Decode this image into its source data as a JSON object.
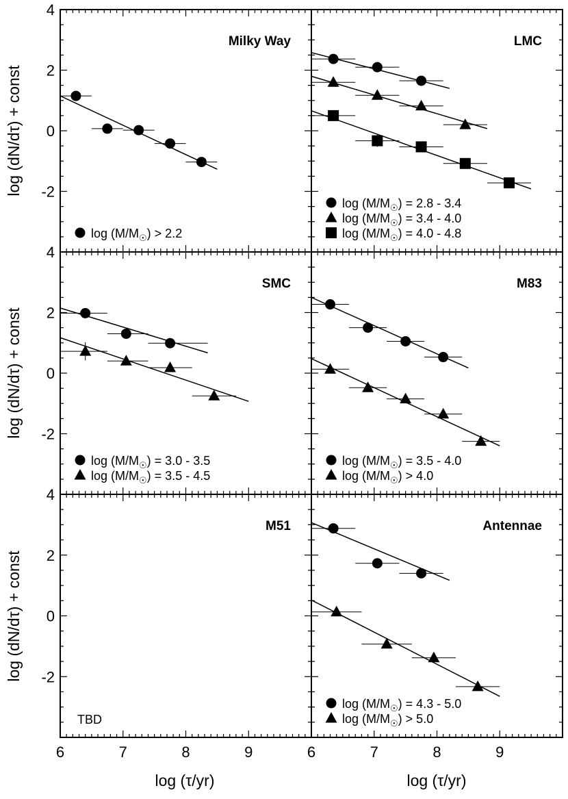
{
  "figure": {
    "xlabel": "log (τ/yr)",
    "ylabel": "log (dN/dτ) + const",
    "xlim": [
      6,
      10
    ],
    "ylim": [
      -4,
      4
    ],
    "x_ticks": [
      "6",
      "7",
      "8",
      "9"
    ],
    "y_ticks": [
      "4",
      "2",
      "0",
      "-2"
    ]
  },
  "chart_data": [
    {
      "type": "scatter",
      "title": "Milky Way",
      "xlabel": "log (τ/yr)",
      "ylabel": "log (dN/dτ) + const",
      "xlim": [
        6,
        10
      ],
      "ylim": [
        -4,
        4
      ],
      "series": [
        {
          "name": "log (M/M☉) > 2.2",
          "marker": "circle",
          "points": [
            {
              "x": 6.25,
              "y": 1.15,
              "xerr": [
                6.0,
                6.5
              ],
              "yerr": 0
            },
            {
              "x": 6.75,
              "y": 0.07,
              "xerr": [
                6.5,
                7.0
              ],
              "yerr": 0
            },
            {
              "x": 7.25,
              "y": 0.02,
              "xerr": [
                7.0,
                7.5
              ],
              "yerr": 0
            },
            {
              "x": 7.75,
              "y": -0.42,
              "xerr": [
                7.5,
                8.0
              ],
              "yerr": 0
            },
            {
              "x": 8.25,
              "y": -1.03,
              "xerr": [
                8.0,
                8.5
              ],
              "yerr": 0
            }
          ],
          "fit": {
            "x": [
              6.0,
              8.5
            ],
            "y": [
              1.15,
              -1.27
            ]
          }
        }
      ]
    },
    {
      "type": "scatter",
      "title": "LMC",
      "xlabel": "log (τ/yr)",
      "ylabel": "log (dN/dτ) + const",
      "xlim": [
        6,
        10
      ],
      "ylim": [
        -4,
        4
      ],
      "series": [
        {
          "name": "log (M/M☉) = 2.8 - 3.4",
          "marker": "circle",
          "points": [
            {
              "x": 6.35,
              "y": 2.37,
              "xerr": [
                6.0,
                6.7
              ],
              "yerr": 0
            },
            {
              "x": 7.05,
              "y": 2.1,
              "xerr": [
                6.7,
                7.4
              ],
              "yerr": 0
            },
            {
              "x": 7.75,
              "y": 1.65,
              "xerr": [
                7.4,
                8.1
              ],
              "yerr": 0
            }
          ],
          "fit": {
            "x": [
              6.0,
              8.2
            ],
            "y": [
              2.58,
              1.4
            ]
          }
        },
        {
          "name": "log (M/M☉) = 3.4 - 4.0",
          "marker": "triangle",
          "points": [
            {
              "x": 6.35,
              "y": 1.6,
              "xerr": [
                6.0,
                6.7
              ],
              "yerr": 0
            },
            {
              "x": 7.05,
              "y": 1.17,
              "xerr": [
                6.7,
                7.4
              ],
              "yerr": 0
            },
            {
              "x": 7.75,
              "y": 0.82,
              "xerr": [
                7.4,
                8.1
              ],
              "yerr": 0
            },
            {
              "x": 8.45,
              "y": 0.2,
              "xerr": [
                8.1,
                8.8
              ],
              "yerr": 0
            }
          ],
          "fit": {
            "x": [
              6.0,
              8.8
            ],
            "y": [
              1.8,
              0.07
            ]
          }
        },
        {
          "name": "log (M/M☉) = 4.0 - 4.8",
          "marker": "square",
          "points": [
            {
              "x": 6.35,
              "y": 0.5,
              "xerr": [
                6.0,
                6.7
              ],
              "yerr": 0
            },
            {
              "x": 7.05,
              "y": -0.33,
              "xerr": [
                6.7,
                7.4
              ],
              "yerr": 0.2
            },
            {
              "x": 7.75,
              "y": -0.53,
              "xerr": [
                7.4,
                8.1
              ],
              "yerr": 0
            },
            {
              "x": 8.45,
              "y": -1.08,
              "xerr": [
                8.1,
                8.8
              ],
              "yerr": 0
            },
            {
              "x": 9.15,
              "y": -1.72,
              "xerr": [
                8.8,
                9.5
              ],
              "yerr": 0
            }
          ],
          "fit": {
            "x": [
              6.0,
              9.5
            ],
            "y": [
              0.66,
              -1.92
            ]
          }
        }
      ]
    },
    {
      "type": "scatter",
      "title": "SMC",
      "xlabel": "log (τ/yr)",
      "ylabel": "log (dN/dτ) + const",
      "xlim": [
        6,
        10
      ],
      "ylim": [
        -4,
        4
      ],
      "series": [
        {
          "name": "log (M/M☉) = 3.0 - 3.5",
          "marker": "circle",
          "points": [
            {
              "x": 6.4,
              "y": 1.98,
              "xerr": [
                6.0,
                6.75
              ],
              "yerr": 0
            },
            {
              "x": 7.05,
              "y": 1.3,
              "xerr": [
                6.75,
                7.4
              ],
              "yerr": 0
            },
            {
              "x": 7.75,
              "y": 0.99,
              "xerr": [
                7.4,
                8.35
              ],
              "yerr": 0
            }
          ],
          "fit": {
            "x": [
              6.0,
              8.35
            ],
            "y": [
              2.15,
              0.67
            ]
          }
        },
        {
          "name": "log (M/M☉) = 3.5 - 4.5",
          "marker": "triangle",
          "points": [
            {
              "x": 6.4,
              "y": 0.72,
              "xerr": [
                6.0,
                6.75
              ],
              "yerr": 0.3
            },
            {
              "x": 7.05,
              "y": 0.4,
              "xerr": [
                6.75,
                7.4
              ],
              "yerr": 0
            },
            {
              "x": 7.75,
              "y": 0.18,
              "xerr": [
                7.4,
                8.1
              ],
              "yerr": 0
            },
            {
              "x": 8.45,
              "y": -0.75,
              "xerr": [
                8.1,
                8.8
              ],
              "yerr": 0
            }
          ],
          "fit": {
            "x": [
              6.0,
              9.0
            ],
            "y": [
              1.17,
              -0.93
            ]
          }
        }
      ]
    },
    {
      "type": "scatter",
      "title": "M83",
      "xlabel": "log (τ/yr)",
      "ylabel": "log (dN/dτ) + const",
      "xlim": [
        6,
        10
      ],
      "ylim": [
        -4,
        4
      ],
      "series": [
        {
          "name": "log (M/M☉) = 3.5 - 4.0",
          "marker": "circle",
          "points": [
            {
              "x": 6.3,
              "y": 2.27,
              "xerr": [
                6.0,
                6.6
              ],
              "yerr": 0
            },
            {
              "x": 6.9,
              "y": 1.5,
              "xerr": [
                6.6,
                7.2
              ],
              "yerr": 0
            },
            {
              "x": 7.5,
              "y": 1.05,
              "xerr": [
                7.2,
                7.8
              ],
              "yerr": 0
            },
            {
              "x": 8.1,
              "y": 0.53,
              "xerr": [
                7.8,
                8.4
              ],
              "yerr": 0
            }
          ],
          "fit": {
            "x": [
              6.0,
              8.5
            ],
            "y": [
              2.5,
              0.17
            ]
          }
        },
        {
          "name": "log (M/M☉) > 4.0",
          "marker": "triangle",
          "points": [
            {
              "x": 6.3,
              "y": 0.13,
              "xerr": [
                6.0,
                6.6
              ],
              "yerr": 0
            },
            {
              "x": 6.9,
              "y": -0.48,
              "xerr": [
                6.6,
                7.2
              ],
              "yerr": 0
            },
            {
              "x": 7.5,
              "y": -0.85,
              "xerr": [
                7.2,
                7.8
              ],
              "yerr": 0
            },
            {
              "x": 8.1,
              "y": -1.35,
              "xerr": [
                7.8,
                8.4
              ],
              "yerr": 0
            },
            {
              "x": 8.7,
              "y": -2.25,
              "xerr": [
                8.4,
                9.0
              ],
              "yerr": 0
            }
          ],
          "fit": {
            "x": [
              6.0,
              9.0
            ],
            "y": [
              0.48,
              -2.4
            ]
          }
        }
      ]
    },
    {
      "type": "scatter",
      "title": "M51",
      "xlabel": "log (τ/yr)",
      "ylabel": "log (dN/dτ) + const",
      "xlim": [
        6,
        10
      ],
      "ylim": [
        -4,
        4
      ],
      "note": "TBD",
      "series": []
    },
    {
      "type": "scatter",
      "title": "Antennae",
      "xlabel": "log (τ/yr)",
      "ylabel": "log (dN/dτ) + const",
      "xlim": [
        6,
        10
      ],
      "ylim": [
        -4,
        4
      ],
      "series": [
        {
          "name": "log (M/M☉) = 4.3 - 5.0",
          "marker": "circle",
          "points": [
            {
              "x": 6.35,
              "y": 2.88,
              "xerr": [
                6.0,
                6.7
              ],
              "yerr": 0
            },
            {
              "x": 7.05,
              "y": 1.73,
              "xerr": [
                6.7,
                7.4
              ],
              "yerr": 0
            },
            {
              "x": 7.75,
              "y": 1.4,
              "xerr": [
                7.4,
                8.1
              ],
              "yerr": 0
            }
          ],
          "fit": {
            "x": [
              6.0,
              8.2
            ],
            "y": [
              3.07,
              1.17
            ]
          }
        },
        {
          "name": "log (M/M☉) > 5.0",
          "marker": "triangle",
          "points": [
            {
              "x": 6.4,
              "y": 0.13,
              "xerr": [
                6.0,
                6.8
              ],
              "yerr": 0
            },
            {
              "x": 7.2,
              "y": -0.93,
              "xerr": [
                6.8,
                7.6
              ],
              "yerr": 0
            },
            {
              "x": 7.95,
              "y": -1.38,
              "xerr": [
                7.6,
                8.3
              ],
              "yerr": 0
            },
            {
              "x": 8.65,
              "y": -2.33,
              "xerr": [
                8.3,
                9.0
              ],
              "yerr": 0
            }
          ],
          "fit": {
            "x": [
              6.0,
              9.0
            ],
            "y": [
              0.52,
              -2.65
            ]
          }
        }
      ]
    }
  ]
}
